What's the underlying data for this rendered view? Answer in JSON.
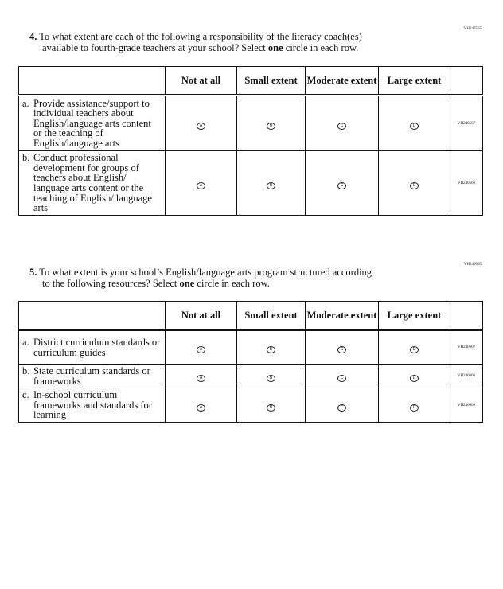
{
  "columns": [
    "Not at all",
    "Small extent",
    "Moderate extent",
    "Large extent"
  ],
  "bubbles": [
    "A",
    "B",
    "C",
    "D"
  ],
  "q4": {
    "code": "VH240565",
    "number": "4.",
    "line1": "To what extent are each of the following a responsibility of the literacy coach(es)",
    "line2_pre": "available to fourth-grade teachers at your school? Select ",
    "line2_bold": "one",
    "line2_post": " circle in each row.",
    "rows": [
      {
        "letter": "a.",
        "text": "Provide assistance/support to individual teachers about English/language arts content or the teaching of English/language arts",
        "code": "VH240567"
      },
      {
        "letter": "b.",
        "text": "Conduct professional development for groups of teachers about English/ language arts content or the teaching of English/ language arts",
        "code": "VH240566"
      }
    ]
  },
  "q5": {
    "code": "VH240605",
    "number": "5.",
    "line1": "To what extent is your school’s English/language arts program structured according",
    "line2_pre": "to the following resources? Select ",
    "line2_bold": "one",
    "line2_post": " circle in each row.",
    "rows": [
      {
        "letter": "a.",
        "text": "District curriculum standards or curriculum guides",
        "code": "VH240607"
      },
      {
        "letter": "b.",
        "text": "State curriculum standards or frameworks",
        "code": "VH240606"
      },
      {
        "letter": "c.",
        "text": "In-school curriculum frameworks and standards for learning",
        "code": "VH240609"
      }
    ]
  }
}
